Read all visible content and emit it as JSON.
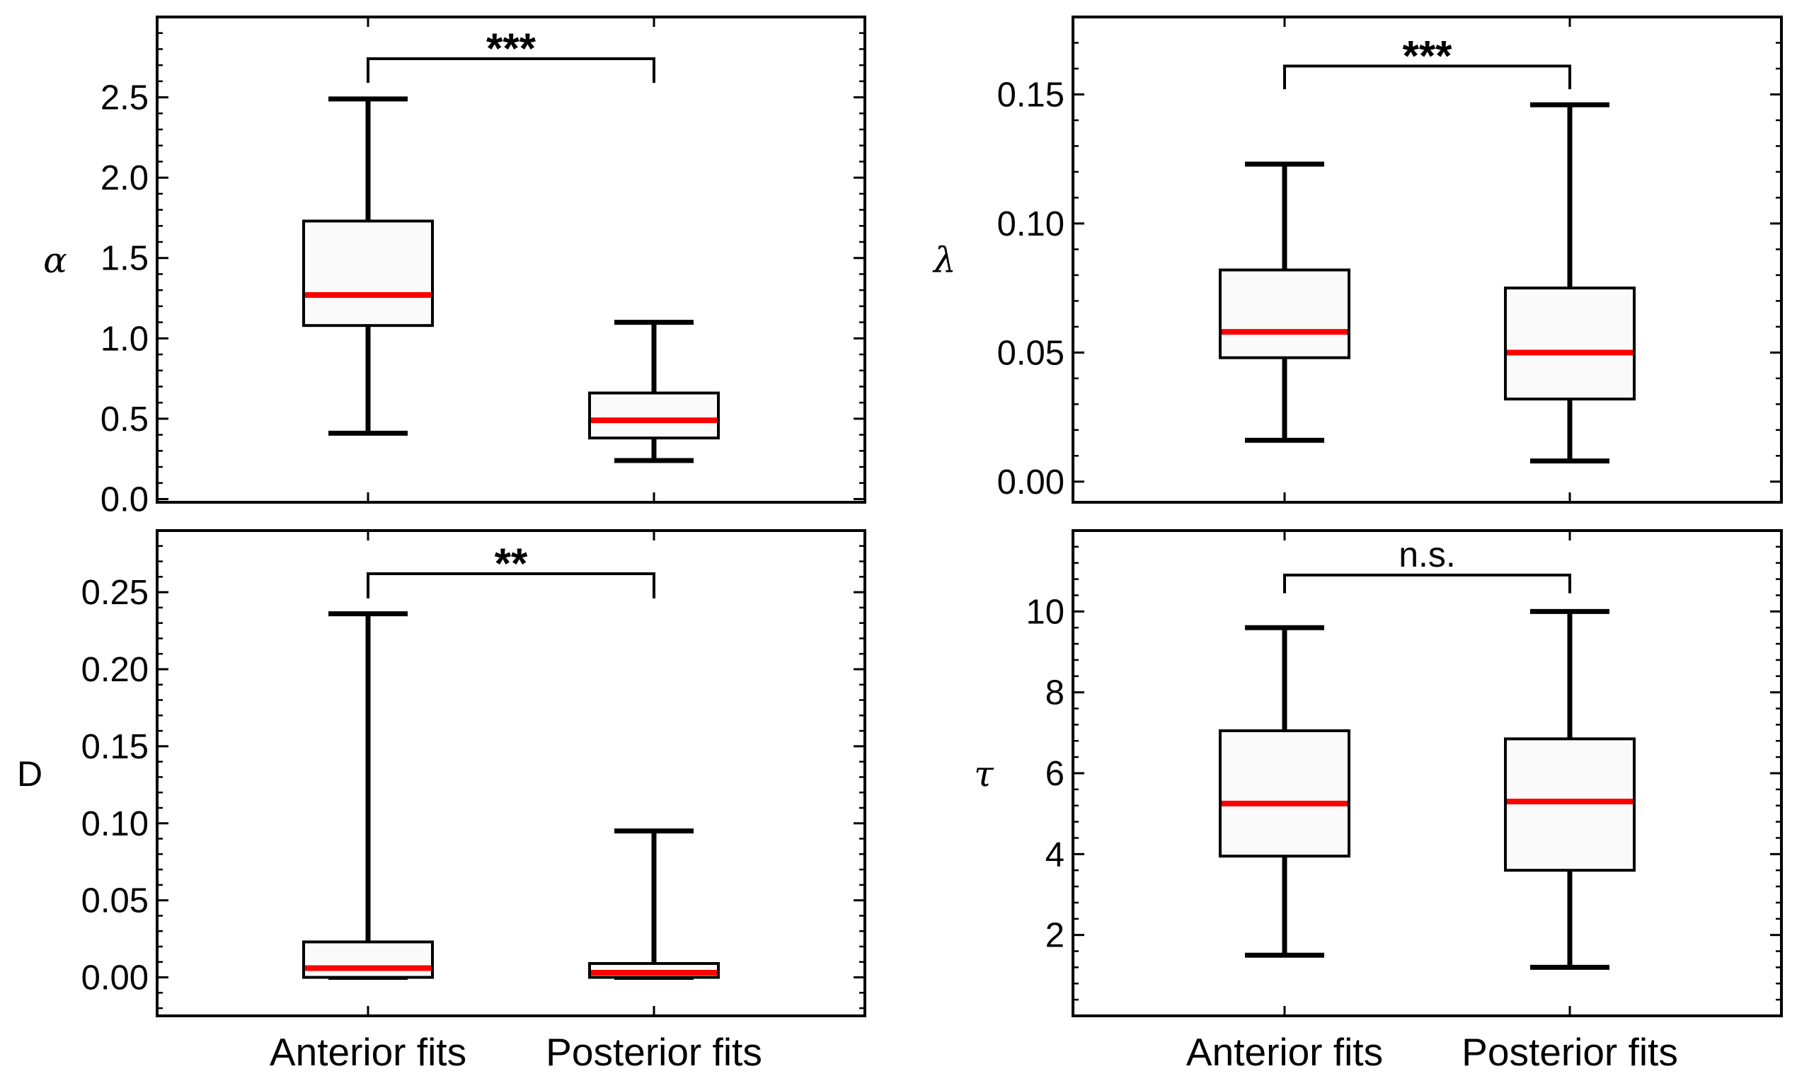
{
  "chart_data": [
    {
      "type": "box",
      "panel": "top-left",
      "ylabel": "α",
      "ylabel_style": "italic",
      "ylim": [
        -0.02,
        3.0
      ],
      "yticks": [
        {
          "value": 0.0,
          "label": "0.0"
        },
        {
          "value": 0.5,
          "label": "0.5"
        },
        {
          "value": 1.0,
          "label": "1.0"
        },
        {
          "value": 1.5,
          "label": "1.5"
        },
        {
          "value": 2.0,
          "label": "2.0"
        },
        {
          "value": 2.5,
          "label": "2.5"
        }
      ],
      "categories": [
        "Anterior fits",
        "Posterior fits"
      ],
      "show_xlabels": false,
      "boxes": [
        {
          "min": 0.41,
          "q1": 1.08,
          "median": 1.27,
          "q3": 1.73,
          "max": 2.49
        },
        {
          "min": 0.24,
          "q1": 0.38,
          "median": 0.49,
          "q3": 0.66,
          "max": 1.1
        }
      ],
      "significance": {
        "label": "***",
        "bracket_y": 2.74,
        "arm_bottom": 2.59
      }
    },
    {
      "type": "box",
      "panel": "top-right",
      "ylabel": "λ",
      "ylabel_style": "italic",
      "ylim": [
        -0.008,
        0.18
      ],
      "yticks": [
        {
          "value": 0.0,
          "label": "0.00"
        },
        {
          "value": 0.05,
          "label": "0.05"
        },
        {
          "value": 0.1,
          "label": "0.10"
        },
        {
          "value": 0.15,
          "label": "0.15"
        }
      ],
      "categories": [
        "Anterior fits",
        "Posterior fits"
      ],
      "show_xlabels": false,
      "boxes": [
        {
          "min": 0.016,
          "q1": 0.048,
          "median": 0.058,
          "q3": 0.082,
          "max": 0.123
        },
        {
          "min": 0.008,
          "q1": 0.032,
          "median": 0.05,
          "q3": 0.075,
          "max": 0.146
        }
      ],
      "significance": {
        "label": "***",
        "bracket_y": 0.161,
        "arm_bottom": 0.152
      }
    },
    {
      "type": "box",
      "panel": "bottom-left",
      "ylabel": "D",
      "ylabel_style": "upright",
      "ylim": [
        -0.025,
        0.29
      ],
      "yticks": [
        {
          "value": 0.0,
          "label": "0.00"
        },
        {
          "value": 0.05,
          "label": "0.05"
        },
        {
          "value": 0.1,
          "label": "0.10"
        },
        {
          "value": 0.15,
          "label": "0.15"
        },
        {
          "value": 0.2,
          "label": "0.20"
        },
        {
          "value": 0.25,
          "label": "0.25"
        }
      ],
      "categories": [
        "Anterior fits",
        "Posterior fits"
      ],
      "show_xlabels": true,
      "boxes": [
        {
          "min": 0.0,
          "q1": 0.0,
          "median": 0.006,
          "q3": 0.023,
          "max": 0.236
        },
        {
          "min": 0.0,
          "q1": 0.0,
          "median": 0.003,
          "q3": 0.009,
          "max": 0.095
        }
      ],
      "significance": {
        "label": "**",
        "bracket_y": 0.262,
        "arm_bottom": 0.246
      }
    },
    {
      "type": "box",
      "panel": "bottom-right",
      "ylabel": "τ",
      "ylabel_style": "italic",
      "ylim": [
        0.0,
        12.0
      ],
      "yticks": [
        {
          "value": 2,
          "label": "2"
        },
        {
          "value": 4,
          "label": "4"
        },
        {
          "value": 6,
          "label": "6"
        },
        {
          "value": 8,
          "label": "8"
        },
        {
          "value": 10,
          "label": "10"
        }
      ],
      "categories": [
        "Anterior fits",
        "Posterior fits"
      ],
      "show_xlabels": true,
      "boxes": [
        {
          "min": 1.5,
          "q1": 3.95,
          "median": 5.25,
          "q3": 7.05,
          "max": 9.6
        },
        {
          "min": 1.2,
          "q1": 3.6,
          "median": 5.3,
          "q3": 6.85,
          "max": 10.0
        }
      ],
      "significance": {
        "label": "n.s.",
        "bracket_y": 10.9,
        "arm_bottom": 10.45
      }
    }
  ],
  "colors": {
    "median": "#ff0000",
    "box_fill": "#fafafa",
    "stroke": "#000000",
    "background": "#ffffff"
  }
}
